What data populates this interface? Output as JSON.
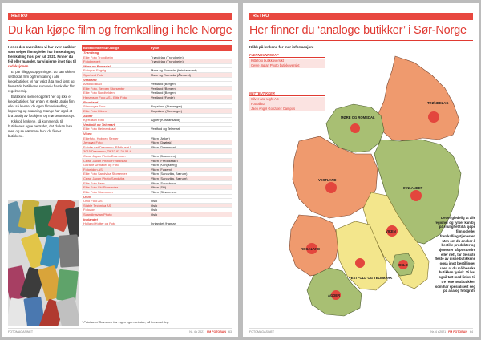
{
  "left": {
    "tag": "RETRO",
    "title": "Du kan kjøpe film og fremkalling i hele Norge",
    "lead_bold": "Her er den oversikten vi har over butikker som selger film og/eller har innsetting og fremkalling hos, per juli 2021. Finner du feil eller mangler, tar vi gjerne imot tips til",
    "lead_link": "redaksjonen",
    "paragraphs": [
      "Et par tilleggsopplysninger: du kan sikkert sett lokalt film og fremkalling i alle kjedebutikker. Vi har valgt å ta med først og fremst de butikkene som selv fremkaller film regelmessig.",
      "Butikkene som er oppført her og ikke er kjedebutikker, har enten et sterkt utvalg film eller så leverer de egen film­behandling, kopiering og skanning. Mange har også et bra utvalg av fotokjemi og mørkeromsutstyr.",
      "Kikk på lenkene, så kommer du til butikkenes egne nettsider, det du kan lese mer, og se nærmere hvor du finner butikkene."
    ],
    "table_headers": [
      "Butikklenker Sør-Norge",
      "Fylke"
    ],
    "rows": [
      {
        "type": "region",
        "name": "Trøndelag"
      },
      {
        "type": "shop",
        "name": "Elite Foto Trondheim",
        "county": "Trøndelag (Trondheim)"
      },
      {
        "type": "shop",
        "name": "Fotoknepert",
        "county": "Trøndelag (Trondheim)"
      },
      {
        "type": "region",
        "name": "Møre og Romsdal"
      },
      {
        "type": "shop",
        "name": "Fotograf Engvig",
        "county": "Møre og Romsdal (Kristiansund)"
      },
      {
        "type": "shop",
        "name": "Sporland Foto",
        "county": "Møre og Romsdal (Ålesund)"
      },
      {
        "type": "region",
        "name": "Vestland"
      },
      {
        "type": "shop",
        "name": "Antonio Blad",
        "county": "Vestland (Bergen)"
      },
      {
        "type": "shop",
        "name": "Elite Foto, Bergen Storsenter",
        "county": "Vestland (Bergen)"
      },
      {
        "type": "shop",
        "name": "Elite Foto Nordhelden",
        "county": "Vestland (Bergen)"
      },
      {
        "type": "shop",
        "name": "Henanson Foto AS - Elite Foto",
        "county": "Vestland (Førde)"
      },
      {
        "type": "region",
        "name": "Rogaland"
      },
      {
        "type": "shop",
        "name": "Stavanger Foto",
        "county": "Rogaland (Stavanger)"
      },
      {
        "type": "shop",
        "name": "Elite Foto Kilden",
        "county": "Rogaland (Stavanger)"
      },
      {
        "type": "region",
        "name": "Agder"
      },
      {
        "type": "shop",
        "name": "Kjerrasch Foto",
        "county": "Agder (Kristiansand)"
      },
      {
        "type": "region",
        "name": "Vestfold og Telemark"
      },
      {
        "type": "shop",
        "name": "Elite Foto Heimenkraal",
        "county": "Vestfold og Telemark"
      },
      {
        "type": "region",
        "name": "Viken"
      },
      {
        "type": "shop",
        "name": "Elitefoto, Hobbeo Senter",
        "county": "Viken (Asker)"
      },
      {
        "type": "shop",
        "name": "Jensrød Foto",
        "county": "Viken (Drøbak)"
      },
      {
        "type": "shop",
        "name": "Fotofauset Drammen, Rådhusgt 5,",
        "county": "Viken (Drammen)"
      },
      {
        "type": "shop",
        "name": "3015 Drammen, Tlf 32 83 29 54 *",
        "county": ""
      },
      {
        "type": "shop",
        "name": "Cewe Japan Photo Drammen",
        "county": "Viken (Drammen)"
      },
      {
        "type": "shop",
        "name": "Cewe Japan Photo Fredrikstad",
        "county": "Viken (Fredrikstad)"
      },
      {
        "type": "shop",
        "name": "Ghrane Urmaker og Foto",
        "county": "Viken (Kongsberg)"
      },
      {
        "type": "shop",
        "name": "Fotosiden AS",
        "county": "Viken (Fagem)"
      },
      {
        "type": "shop",
        "name": "Elite Foto Sandvika Storsenter",
        "county": "Viken (Sandvika, Bærum)"
      },
      {
        "type": "shop",
        "name": "Cewe Japan Photo Sandvika",
        "county": "Viken (Sandvika, Bærum)"
      },
      {
        "type": "shop",
        "name": "Elite Foto Berg",
        "county": "Viken (Sarpsborg)"
      },
      {
        "type": "shop",
        "name": "Elite Foto Ski Storsenter",
        "county": "Viken (Ski)"
      },
      {
        "type": "shop",
        "name": "Elite Foto Strømmen",
        "county": "Viken (Strømmen)"
      },
      {
        "type": "region",
        "name": "Oslo"
      },
      {
        "type": "shop",
        "name": "Oslo Foto AS",
        "county": "Oslo"
      },
      {
        "type": "shop",
        "name": "Stable Technika AS",
        "county": "Oslo"
      },
      {
        "type": "shop",
        "name": "Fotozon",
        "county": "Oslo"
      },
      {
        "type": "shop",
        "name": "Scandinavian Photo",
        "county": "Oslo"
      },
      {
        "type": "region",
        "name": "Innlandet"
      },
      {
        "type": "shop",
        "name": "Holland Hotter og Foto",
        "county": "Innlandet (Hamar)"
      }
    ],
    "footnote": "* Fotofauset Drammen har ingen egen nettside, så henvend deg.",
    "footer_left": "FOTOMAGASINET",
    "footer_issue": "Nr. 4 • 2021",
    "footer_page": "63",
    "footer_mag": "FM FOTOBAN"
  },
  "right": {
    "tag": "RETRO",
    "title": "Her finner du ‘analoge butikker’ i Sør-Norge",
    "intro": "Klikk på lenkene for mer informasjon:",
    "boxes": [
      {
        "head": "FJERNKUNNSKAP",
        "items": [
          "Kittefoto butikkoversikt",
          "Cewe Japan Photo butikkoversikt"
        ]
      },
      {
        "head": "NETTBUTIKKER",
        "items": [
          "Silver and Light AS",
          "Fotoalista",
          "Jaen Angel Gonzalez Campos"
        ]
      }
    ],
    "regions": [
      "TRØNDELAG",
      "MØRE OG ROMSDAL",
      "VESTLAND",
      "INNLANDET",
      "VIKEN",
      "OSLO",
      "ROGALAND",
      "VESTFOLD OG TELEMARK",
      "AGDER"
    ],
    "map_note": "Det er gledelig at alle regioner og fylker kan by på mulighet til å kjøpe film og/eller fremkallingstjenester. Men om du ønsker å bestille produkter og tjenester på postordre eller nett, tar de siste fleste av disse butikkene også imot bestillinger uten at du må besøke butikken fysisk. Vi har også tatt med linker til tre rene nettbutikker, som har spesialisert seg på analog fotografi.",
    "footer_left": "FOTOMAGASINET",
    "footer_issue": "Nr. 4 • 2021",
    "footer_page": "64",
    "footer_mag": "FM FOTOBAN"
  },
  "colors": {
    "accent": "#e03a32",
    "region_orange": "#ef9a6e",
    "region_green": "#a8bf73",
    "region_yellow": "#f3e68c",
    "city_dot": "#e3463d"
  }
}
